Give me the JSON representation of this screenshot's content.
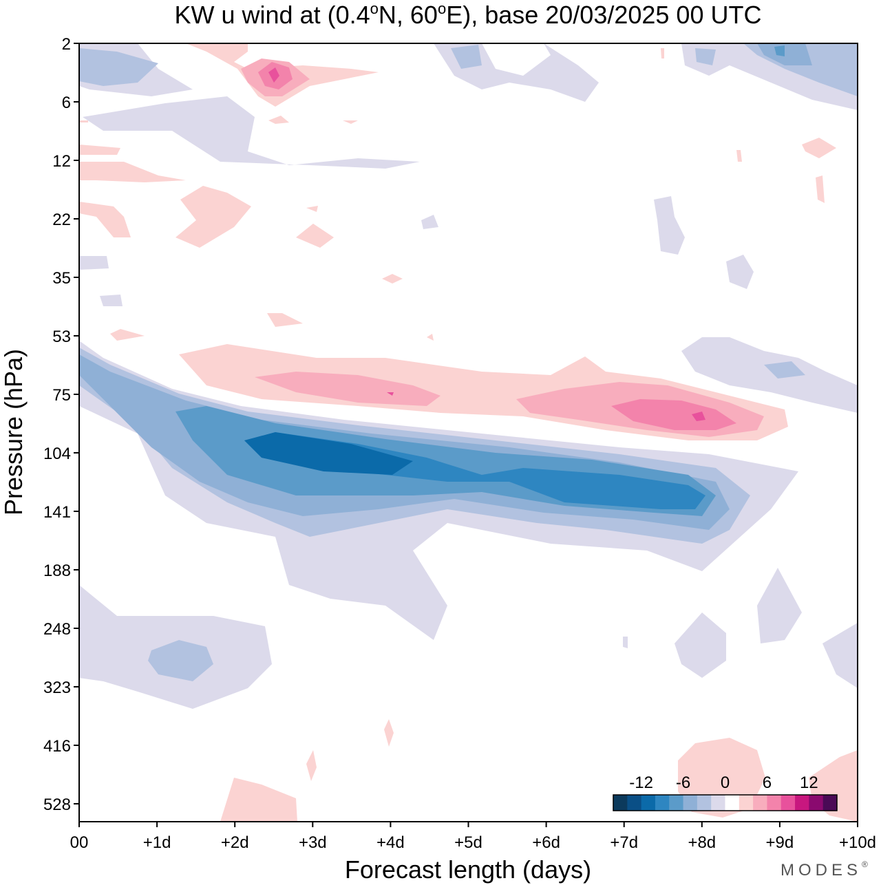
{
  "chart_data": {
    "type": "heatmap",
    "title": "KW u wind at (0.4°N, 60°E),  base 20/03/2025  00 UTC",
    "title_parts": {
      "pre": "KW u wind at (0.4",
      "deg": "o",
      "mid": "N, 60",
      "post": "E),  base 20/03/2025  00 UTC"
    },
    "xlabel": "Forecast length (days)",
    "ylabel": "Pressure (hPa)",
    "x_ticks": [
      "00",
      "+1d",
      "+2d",
      "+3d",
      "+4d",
      "+5d",
      "+6d",
      "+7d",
      "+8d",
      "+9d",
      "+10d"
    ],
    "y_ticks": [
      "2",
      "6",
      "12",
      "22",
      "35",
      "53",
      "75",
      "104",
      "141",
      "188",
      "248",
      "323",
      "416",
      "528"
    ],
    "xlim": [
      0,
      10
    ],
    "colorbar": {
      "tick_labels": [
        "-12",
        "-6",
        "0",
        "6",
        "12"
      ],
      "tick_values": [
        -12,
        -6,
        0,
        6,
        12
      ],
      "colors": [
        "#0c3a5c",
        "#0a4f86",
        "#0b6aa9",
        "#2e86c1",
        "#5b9bc9",
        "#8fb0d6",
        "#b2c2e0",
        "#dcdaeb",
        "#ffffff",
        "#fbd3d2",
        "#f8adbd",
        "#f383ab",
        "#e8519c",
        "#c8177f",
        "#8a0a6f",
        "#4a0a56"
      ]
    },
    "features": [
      {
        "name": "blue",
        "level": -12,
        "x": [
          3,
          4.5
        ],
        "p": [
          90,
          125
        ]
      },
      {
        "name": "blue",
        "level": -10,
        "x": [
          2,
          8
        ],
        "p": [
          80,
          150
        ]
      },
      {
        "name": "pink",
        "level": 12,
        "x": [
          7.5,
          8.5
        ],
        "p": [
          75,
          95
        ]
      },
      {
        "name": "pink",
        "level": 8,
        "x": [
          2.5,
          4
        ],
        "p": [
          3,
          5
        ]
      }
    ],
    "grid": false,
    "legend": "bottom-right"
  },
  "brand": "MODES",
  "brand_mark": "®"
}
